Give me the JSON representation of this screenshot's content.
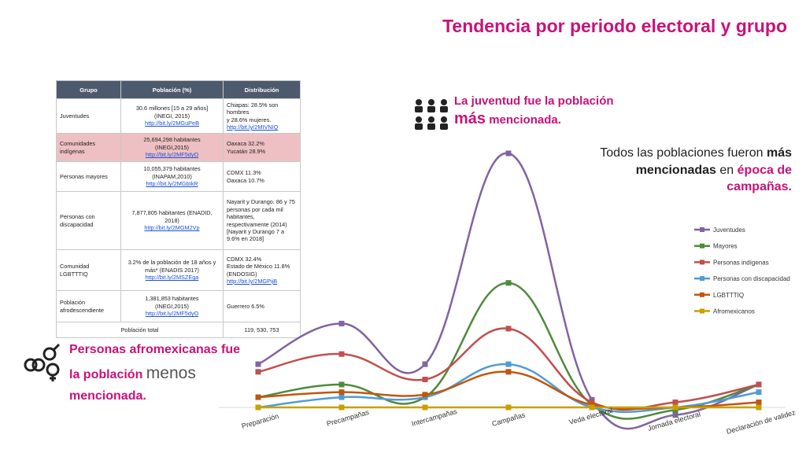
{
  "title": "Tendencia por periodo electoral y grupo",
  "table": {
    "headers": [
      "Grupo",
      "Población (%)",
      "Distribución"
    ],
    "rows": [
      {
        "grupo": "Juventudes",
        "poblacion": [
          "30.6 millones [15 a 29 años]",
          "(INEGI, 2015)"
        ],
        "pob_link": "http://bit.ly/2MGuPeB",
        "distribucion": [
          "Chiapas: 28.5% son hombres",
          "y 28.6% mujeres."
        ],
        "dist_link": "http://bit.ly/2MIVNIQ",
        "highlight": false
      },
      {
        "grupo": "Comunidades indígenas",
        "poblacion": [
          "25,694,298 habitantes",
          "(INEGI,2015)"
        ],
        "pob_link": "http://bit.ly/2MF5dyO",
        "distribucion": [
          "Oaxaca 32.2%",
          "Yucatán 28.9%"
        ],
        "dist_link": "",
        "highlight": true
      },
      {
        "grupo": "Personas mayores",
        "poblacion": [
          "10,055,379 habitantes",
          "(INAPAM,2010)"
        ],
        "pob_link": "http://bit.ly/2MGbIkR",
        "distribucion": [
          "CDMX 11.3%",
          "Oaxaca 10.7%"
        ],
        "dist_link": "",
        "highlight": false
      },
      {
        "grupo": "Personas con discapacidad",
        "poblacion": [
          "7,877,805 habitantes (ENADID, 2018)"
        ],
        "pob_link": "http://bit.ly/2MGM2Vp",
        "distribucion": [
          "Nayarit y Durango. 86 y 75 personas por cada mil habitantes, respectivamente (2014)",
          "[Nayarit y Durango 7 a 9.6% en 2018]"
        ],
        "dist_link": "",
        "highlight": false
      },
      {
        "grupo": "Comunidad LGBTTTIQ",
        "poblacion": [
          "3.2% de la población de 18 años y más* (ENADIS 2017)"
        ],
        "pob_link": "http://bit.ly/2MSZEga",
        "distribucion": [
          "CDMX 32.4%",
          "Estado de México 11.8%",
          "(ENDOSIG)"
        ],
        "dist_link": "http://bit.ly/2MGPijB",
        "highlight": false
      },
      {
        "grupo": "Población afrodescendiente",
        "poblacion": [
          "1,381,853 habitantes",
          "(INEGI,2015)"
        ],
        "pob_link": "http://bit.ly/2MF5dyO",
        "distribucion": [
          "Guerrero 6.5%"
        ],
        "dist_link": "",
        "highlight": false
      }
    ],
    "total_label": "Población total",
    "total_value": "119, 530, 753"
  },
  "youth_note": {
    "line1": "La juventud fue la población",
    "big": "más",
    "rest": "mencionada."
  },
  "all_note": {
    "p1": "Todos las poblaciones fueron ",
    "b1": "más mencionadas",
    "p2": " en ",
    "m1": "época de campañas."
  },
  "afro_note": {
    "line1": "Personas afromexicanas fue",
    "line2a": "la población ",
    "menos": "menos",
    "line3": "mencionada."
  },
  "icons": {
    "people": "group-people-icon",
    "gender": "gender-symbols-icon"
  },
  "chart_data": {
    "type": "line",
    "categories": [
      "Preparación",
      "Precampañas",
      "Intercampañas",
      "Campañas",
      "Veda electoral",
      "Jornada electoral",
      "Declaración de validez"
    ],
    "ylim": [
      0,
      100
    ],
    "grid": false,
    "legend_position": "right",
    "series": [
      {
        "name": "Juventudes",
        "color": "#8064a2",
        "values": [
          17,
          33,
          17,
          100,
          3,
          -3,
          9
        ]
      },
      {
        "name": "Mayores",
        "color": "#4f8a3c",
        "values": [
          4,
          9,
          4,
          49,
          1,
          -1,
          9
        ]
      },
      {
        "name": "Personas indígenas",
        "color": "#c0504d",
        "values": [
          14,
          21,
          11,
          31,
          2,
          2,
          9
        ]
      },
      {
        "name": "Personas con discapacidad",
        "color": "#4f9cd6",
        "values": [
          0,
          4,
          4,
          17,
          0,
          0,
          6
        ]
      },
      {
        "name": "LGBTTTIQ",
        "color": "#c0570f",
        "values": [
          4,
          6,
          5,
          14,
          1,
          0,
          2
        ]
      },
      {
        "name": "Afromexicanos",
        "color": "#c8a000",
        "values": [
          0,
          0,
          0,
          0,
          0,
          0,
          0
        ]
      }
    ]
  }
}
